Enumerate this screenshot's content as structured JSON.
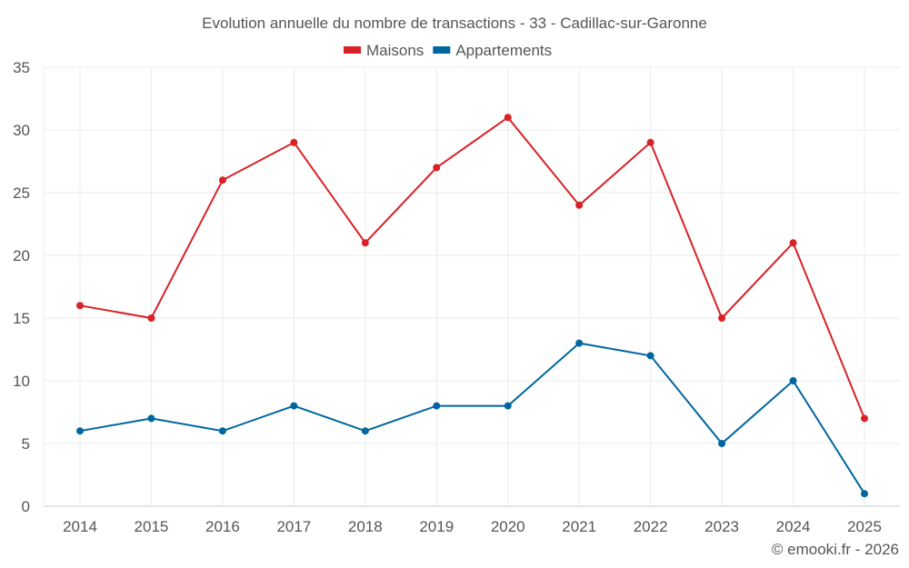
{
  "chart_data": {
    "type": "line",
    "title": "Evolution annuelle du nombre de transactions - 33 - Cadillac-sur-Garonne",
    "x": [
      "2014",
      "2015",
      "2016",
      "2017",
      "2018",
      "2019",
      "2020",
      "2021",
      "2022",
      "2023",
      "2024",
      "2025"
    ],
    "series": [
      {
        "name": "Maisons",
        "color": "#d92226",
        "values": [
          16,
          15,
          26,
          29,
          21,
          27,
          31,
          24,
          29,
          15,
          21,
          7
        ]
      },
      {
        "name": "Appartements",
        "color": "#00669f",
        "values": [
          6,
          7,
          6,
          8,
          6,
          8,
          8,
          13,
          12,
          5,
          10,
          1
        ]
      }
    ],
    "yticks": [
      "0",
      "5",
      "10",
      "15",
      "20",
      "25",
      "30",
      "35"
    ],
    "ylim": [
      0,
      35
    ],
    "xlabel": "",
    "ylabel": "",
    "grid": true,
    "legend": "top-center"
  },
  "credit": "© emooki.fr - 2026"
}
